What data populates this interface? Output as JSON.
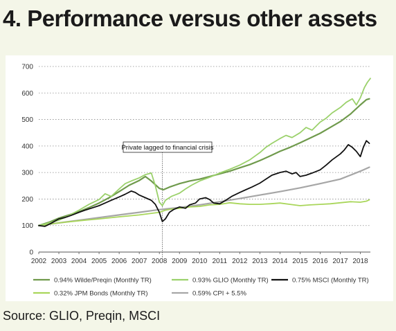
{
  "header": {
    "title": "4. Performance versus other assets"
  },
  "footer": {
    "source": "Source: GLIO, Preqin, MSCI"
  },
  "chart_data": {
    "type": "line",
    "title": "4. Performance versus other assets",
    "xlabel": "",
    "ylabel": "",
    "xlim": [
      2002,
      2018.5
    ],
    "ylim": [
      0,
      700
    ],
    "y_ticks": [
      0,
      100,
      200,
      300,
      400,
      500,
      600,
      700
    ],
    "x_ticks": [
      2002,
      2003,
      2004,
      2005,
      2006,
      2007,
      2008,
      2009,
      2010,
      2011,
      2012,
      2013,
      2014,
      2015,
      2016,
      2017,
      2018
    ],
    "grid": "horizontal dotted",
    "legend_position": "bottom",
    "annotation": {
      "text": "Private lagged to financial crisis",
      "x": 2008.15
    },
    "series": [
      {
        "name": "0.94%  Wilde/Preqin (Monthly TR)",
        "color": "#6f9a4c",
        "width": 2.2,
        "points": [
          [
            2002,
            100
          ],
          [
            2002.5,
            112
          ],
          [
            2003,
            128
          ],
          [
            2003.5,
            140
          ],
          [
            2004,
            152
          ],
          [
            2004.5,
            168
          ],
          [
            2005,
            185
          ],
          [
            2005.5,
            205
          ],
          [
            2006,
            228
          ],
          [
            2006.5,
            252
          ],
          [
            2007,
            270
          ],
          [
            2007.3,
            285
          ],
          [
            2007.6,
            268
          ],
          [
            2008,
            240
          ],
          [
            2008.2,
            235
          ],
          [
            2008.5,
            245
          ],
          [
            2009,
            258
          ],
          [
            2009.5,
            268
          ],
          [
            2010,
            275
          ],
          [
            2010.5,
            285
          ],
          [
            2011,
            295
          ],
          [
            2011.5,
            305
          ],
          [
            2012,
            318
          ],
          [
            2012.5,
            330
          ],
          [
            2013,
            345
          ],
          [
            2013.5,
            362
          ],
          [
            2014,
            380
          ],
          [
            2014.5,
            395
          ],
          [
            2015,
            412
          ],
          [
            2015.5,
            430
          ],
          [
            2016,
            448
          ],
          [
            2016.5,
            470
          ],
          [
            2017,
            492
          ],
          [
            2017.5,
            520
          ],
          [
            2018,
            555
          ],
          [
            2018.3,
            575
          ],
          [
            2018.45,
            578
          ]
        ]
      },
      {
        "name": "0.93% GLIO (Monthly TR)",
        "color": "#9bd16b",
        "width": 1.8,
        "points": [
          [
            2002,
            100
          ],
          [
            2002.5,
            110
          ],
          [
            2003,
            120
          ],
          [
            2003.5,
            138
          ],
          [
            2004,
            158
          ],
          [
            2004.5,
            180
          ],
          [
            2005,
            198
          ],
          [
            2005.3,
            220
          ],
          [
            2005.6,
            210
          ],
          [
            2006,
            238
          ],
          [
            2006.3,
            258
          ],
          [
            2006.6,
            268
          ],
          [
            2007,
            280
          ],
          [
            2007.3,
            292
          ],
          [
            2007.6,
            298
          ],
          [
            2007.8,
            250
          ],
          [
            2008,
            188
          ],
          [
            2008.15,
            175
          ],
          [
            2008.3,
            195
          ],
          [
            2008.6,
            210
          ],
          [
            2009,
            222
          ],
          [
            2009.3,
            238
          ],
          [
            2009.6,
            252
          ],
          [
            2010,
            268
          ],
          [
            2010.5,
            282
          ],
          [
            2011,
            298
          ],
          [
            2011.5,
            312
          ],
          [
            2012,
            328
          ],
          [
            2012.5,
            348
          ],
          [
            2013,
            375
          ],
          [
            2013.3,
            395
          ],
          [
            2013.6,
            410
          ],
          [
            2014,
            428
          ],
          [
            2014.3,
            440
          ],
          [
            2014.6,
            432
          ],
          [
            2015,
            450
          ],
          [
            2015.3,
            470
          ],
          [
            2015.6,
            460
          ],
          [
            2016,
            490
          ],
          [
            2016.3,
            505
          ],
          [
            2016.6,
            525
          ],
          [
            2017,
            545
          ],
          [
            2017.3,
            565
          ],
          [
            2017.6,
            578
          ],
          [
            2017.8,
            555
          ],
          [
            2018,
            582
          ],
          [
            2018.2,
            620
          ],
          [
            2018.35,
            640
          ],
          [
            2018.5,
            655
          ]
        ]
      },
      {
        "name": "0.75% MSCI (Monthly TR)",
        "color": "#111111",
        "width": 1.8,
        "points": [
          [
            2002,
            100
          ],
          [
            2002.3,
            97
          ],
          [
            2002.6,
            108
          ],
          [
            2003,
            125
          ],
          [
            2003.3,
            130
          ],
          [
            2003.6,
            138
          ],
          [
            2004,
            150
          ],
          [
            2004.3,
            158
          ],
          [
            2004.6,
            165
          ],
          [
            2005,
            175
          ],
          [
            2005.3,
            185
          ],
          [
            2005.6,
            195
          ],
          [
            2006,
            208
          ],
          [
            2006.3,
            218
          ],
          [
            2006.6,
            230
          ],
          [
            2006.8,
            225
          ],
          [
            2007,
            215
          ],
          [
            2007.3,
            205
          ],
          [
            2007.6,
            195
          ],
          [
            2007.8,
            180
          ],
          [
            2008,
            150
          ],
          [
            2008.15,
            115
          ],
          [
            2008.3,
            125
          ],
          [
            2008.5,
            150
          ],
          [
            2008.7,
            160
          ],
          [
            2009,
            170
          ],
          [
            2009.3,
            165
          ],
          [
            2009.5,
            178
          ],
          [
            2009.8,
            185
          ],
          [
            2010,
            200
          ],
          [
            2010.3,
            205
          ],
          [
            2010.5,
            198
          ],
          [
            2010.7,
            185
          ],
          [
            2011,
            182
          ],
          [
            2011.3,
            195
          ],
          [
            2011.6,
            210
          ],
          [
            2012,
            225
          ],
          [
            2012.3,
            235
          ],
          [
            2012.6,
            245
          ],
          [
            2013,
            260
          ],
          [
            2013.3,
            275
          ],
          [
            2013.6,
            290
          ],
          [
            2014,
            300
          ],
          [
            2014.3,
            305
          ],
          [
            2014.6,
            295
          ],
          [
            2014.8,
            300
          ],
          [
            2015,
            285
          ],
          [
            2015.3,
            290
          ],
          [
            2015.6,
            298
          ],
          [
            2016,
            310
          ],
          [
            2016.3,
            328
          ],
          [
            2016.6,
            348
          ],
          [
            2017,
            370
          ],
          [
            2017.2,
            385
          ],
          [
            2017.4,
            405
          ],
          [
            2017.6,
            395
          ],
          [
            2017.8,
            380
          ],
          [
            2018,
            360
          ],
          [
            2018.15,
            395
          ],
          [
            2018.3,
            420
          ],
          [
            2018.45,
            410
          ]
        ]
      },
      {
        "name": "0.32% JPM Bonds (Monthly TR)",
        "color": "#a9d65a",
        "width": 1.8,
        "points": [
          [
            2002,
            100
          ],
          [
            2003,
            110
          ],
          [
            2004,
            118
          ],
          [
            2005,
            125
          ],
          [
            2006,
            133
          ],
          [
            2007,
            140
          ],
          [
            2008,
            150
          ],
          [
            2008.3,
            158
          ],
          [
            2008.6,
            162
          ],
          [
            2009,
            165
          ],
          [
            2009.5,
            170
          ],
          [
            2010,
            172
          ],
          [
            2010.5,
            178
          ],
          [
            2011,
            180
          ],
          [
            2011.5,
            186
          ],
          [
            2012,
            182
          ],
          [
            2012.5,
            180
          ],
          [
            2013,
            180
          ],
          [
            2013.5,
            182
          ],
          [
            2014,
            185
          ],
          [
            2014.5,
            180
          ],
          [
            2015,
            175
          ],
          [
            2015.5,
            178
          ],
          [
            2016,
            180
          ],
          [
            2016.5,
            182
          ],
          [
            2017,
            186
          ],
          [
            2017.5,
            190
          ],
          [
            2018,
            188
          ],
          [
            2018.3,
            192
          ],
          [
            2018.45,
            197
          ]
        ]
      },
      {
        "name": "0.59% CPI + 5.5%",
        "color": "#a6a6a6",
        "width": 2.2,
        "points": [
          [
            2002,
            100
          ],
          [
            2003,
            110
          ],
          [
            2004,
            120
          ],
          [
            2005,
            130
          ],
          [
            2006,
            140
          ],
          [
            2007,
            150
          ],
          [
            2008,
            160
          ],
          [
            2009,
            168
          ],
          [
            2010,
            178
          ],
          [
            2011,
            190
          ],
          [
            2012,
            202
          ],
          [
            2013,
            215
          ],
          [
            2014,
            228
          ],
          [
            2015,
            242
          ],
          [
            2016,
            258
          ],
          [
            2017,
            275
          ],
          [
            2018,
            305
          ],
          [
            2018.45,
            320
          ]
        ]
      }
    ]
  }
}
